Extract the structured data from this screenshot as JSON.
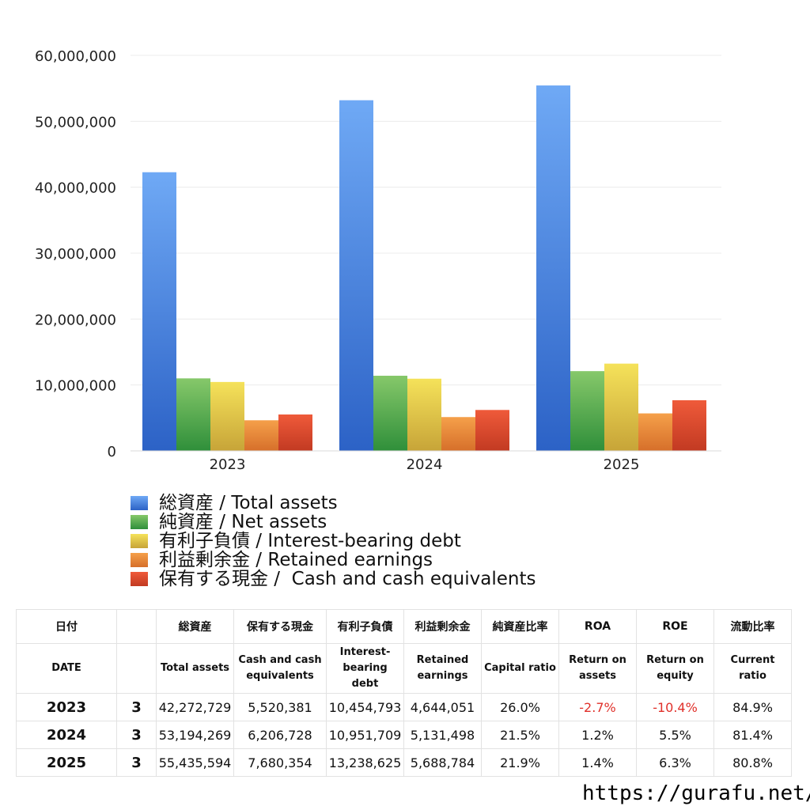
{
  "chart_data": {
    "type": "bar",
    "categories": [
      "2023",
      "2024",
      "2025"
    ],
    "series": [
      {
        "name": "総資産 / Total assets",
        "values": [
          42272729,
          53194269,
          55435594
        ],
        "color_top": "#6fa9f5",
        "color_bottom": "#2c62c6"
      },
      {
        "name": "純資産 / Net assets",
        "values": [
          11000000,
          11400000,
          12100000
        ],
        "color_top": "#86c86a",
        "color_bottom": "#2f8f3a"
      },
      {
        "name": "有利子負債 / Interest-bearing debt",
        "values": [
          10454793,
          10951709,
          13238625
        ],
        "color_top": "#f5e25a",
        "color_bottom": "#c7a438"
      },
      {
        "name": "利益剰余金 / Retained earnings",
        "values": [
          4644051,
          5131498,
          5688784
        ],
        "color_top": "#f5a04a",
        "color_bottom": "#d66f2a"
      },
      {
        "name": "保有する現金 /  Cash and cash equivalents",
        "values": [
          5520381,
          6206728,
          7680354
        ],
        "color_top": "#ef5a3a",
        "color_bottom": "#c23a22"
      }
    ],
    "yticks": [
      "0",
      "10,000,000",
      "20,000,000",
      "30,000,000",
      "40,000,000",
      "50,000,000",
      "60,000,000"
    ],
    "ylim": [
      0,
      60000000
    ],
    "grid": true,
    "legend_position": "bottom-left"
  },
  "table": {
    "header_jp": [
      "日付",
      "",
      "総資産",
      "保有する現金",
      "有利子負債",
      "利益剰余金",
      "純資産比率",
      "ROA",
      "ROE",
      "流動比率"
    ],
    "header_en": [
      "DATE",
      "",
      "Total assets",
      "Cash and cash\nequivalents",
      "Interest-\nbearing\ndebt",
      "Retained\nearnings",
      "Capital ratio",
      "Return on\nassets",
      "Return on\nequity",
      "Current\nratio"
    ],
    "rows": [
      [
        "2023",
        "3",
        "42,272,729",
        "5,520,381",
        "10,454,793",
        "4,644,051",
        "26.0%",
        "-2.7%",
        "-10.4%",
        "84.9%"
      ],
      [
        "2024",
        "3",
        "53,194,269",
        "6,206,728",
        "10,951,709",
        "5,131,498",
        "21.5%",
        "1.2%",
        "5.5%",
        "81.4%"
      ],
      [
        "2025",
        "3",
        "55,435,594",
        "7,680,354",
        "13,238,625",
        "5,688,784",
        "21.9%",
        "1.4%",
        "6.3%",
        "80.8%"
      ]
    ],
    "negative_color": "#e0302a"
  },
  "footer": {
    "url": "https://gurafu.net/"
  }
}
